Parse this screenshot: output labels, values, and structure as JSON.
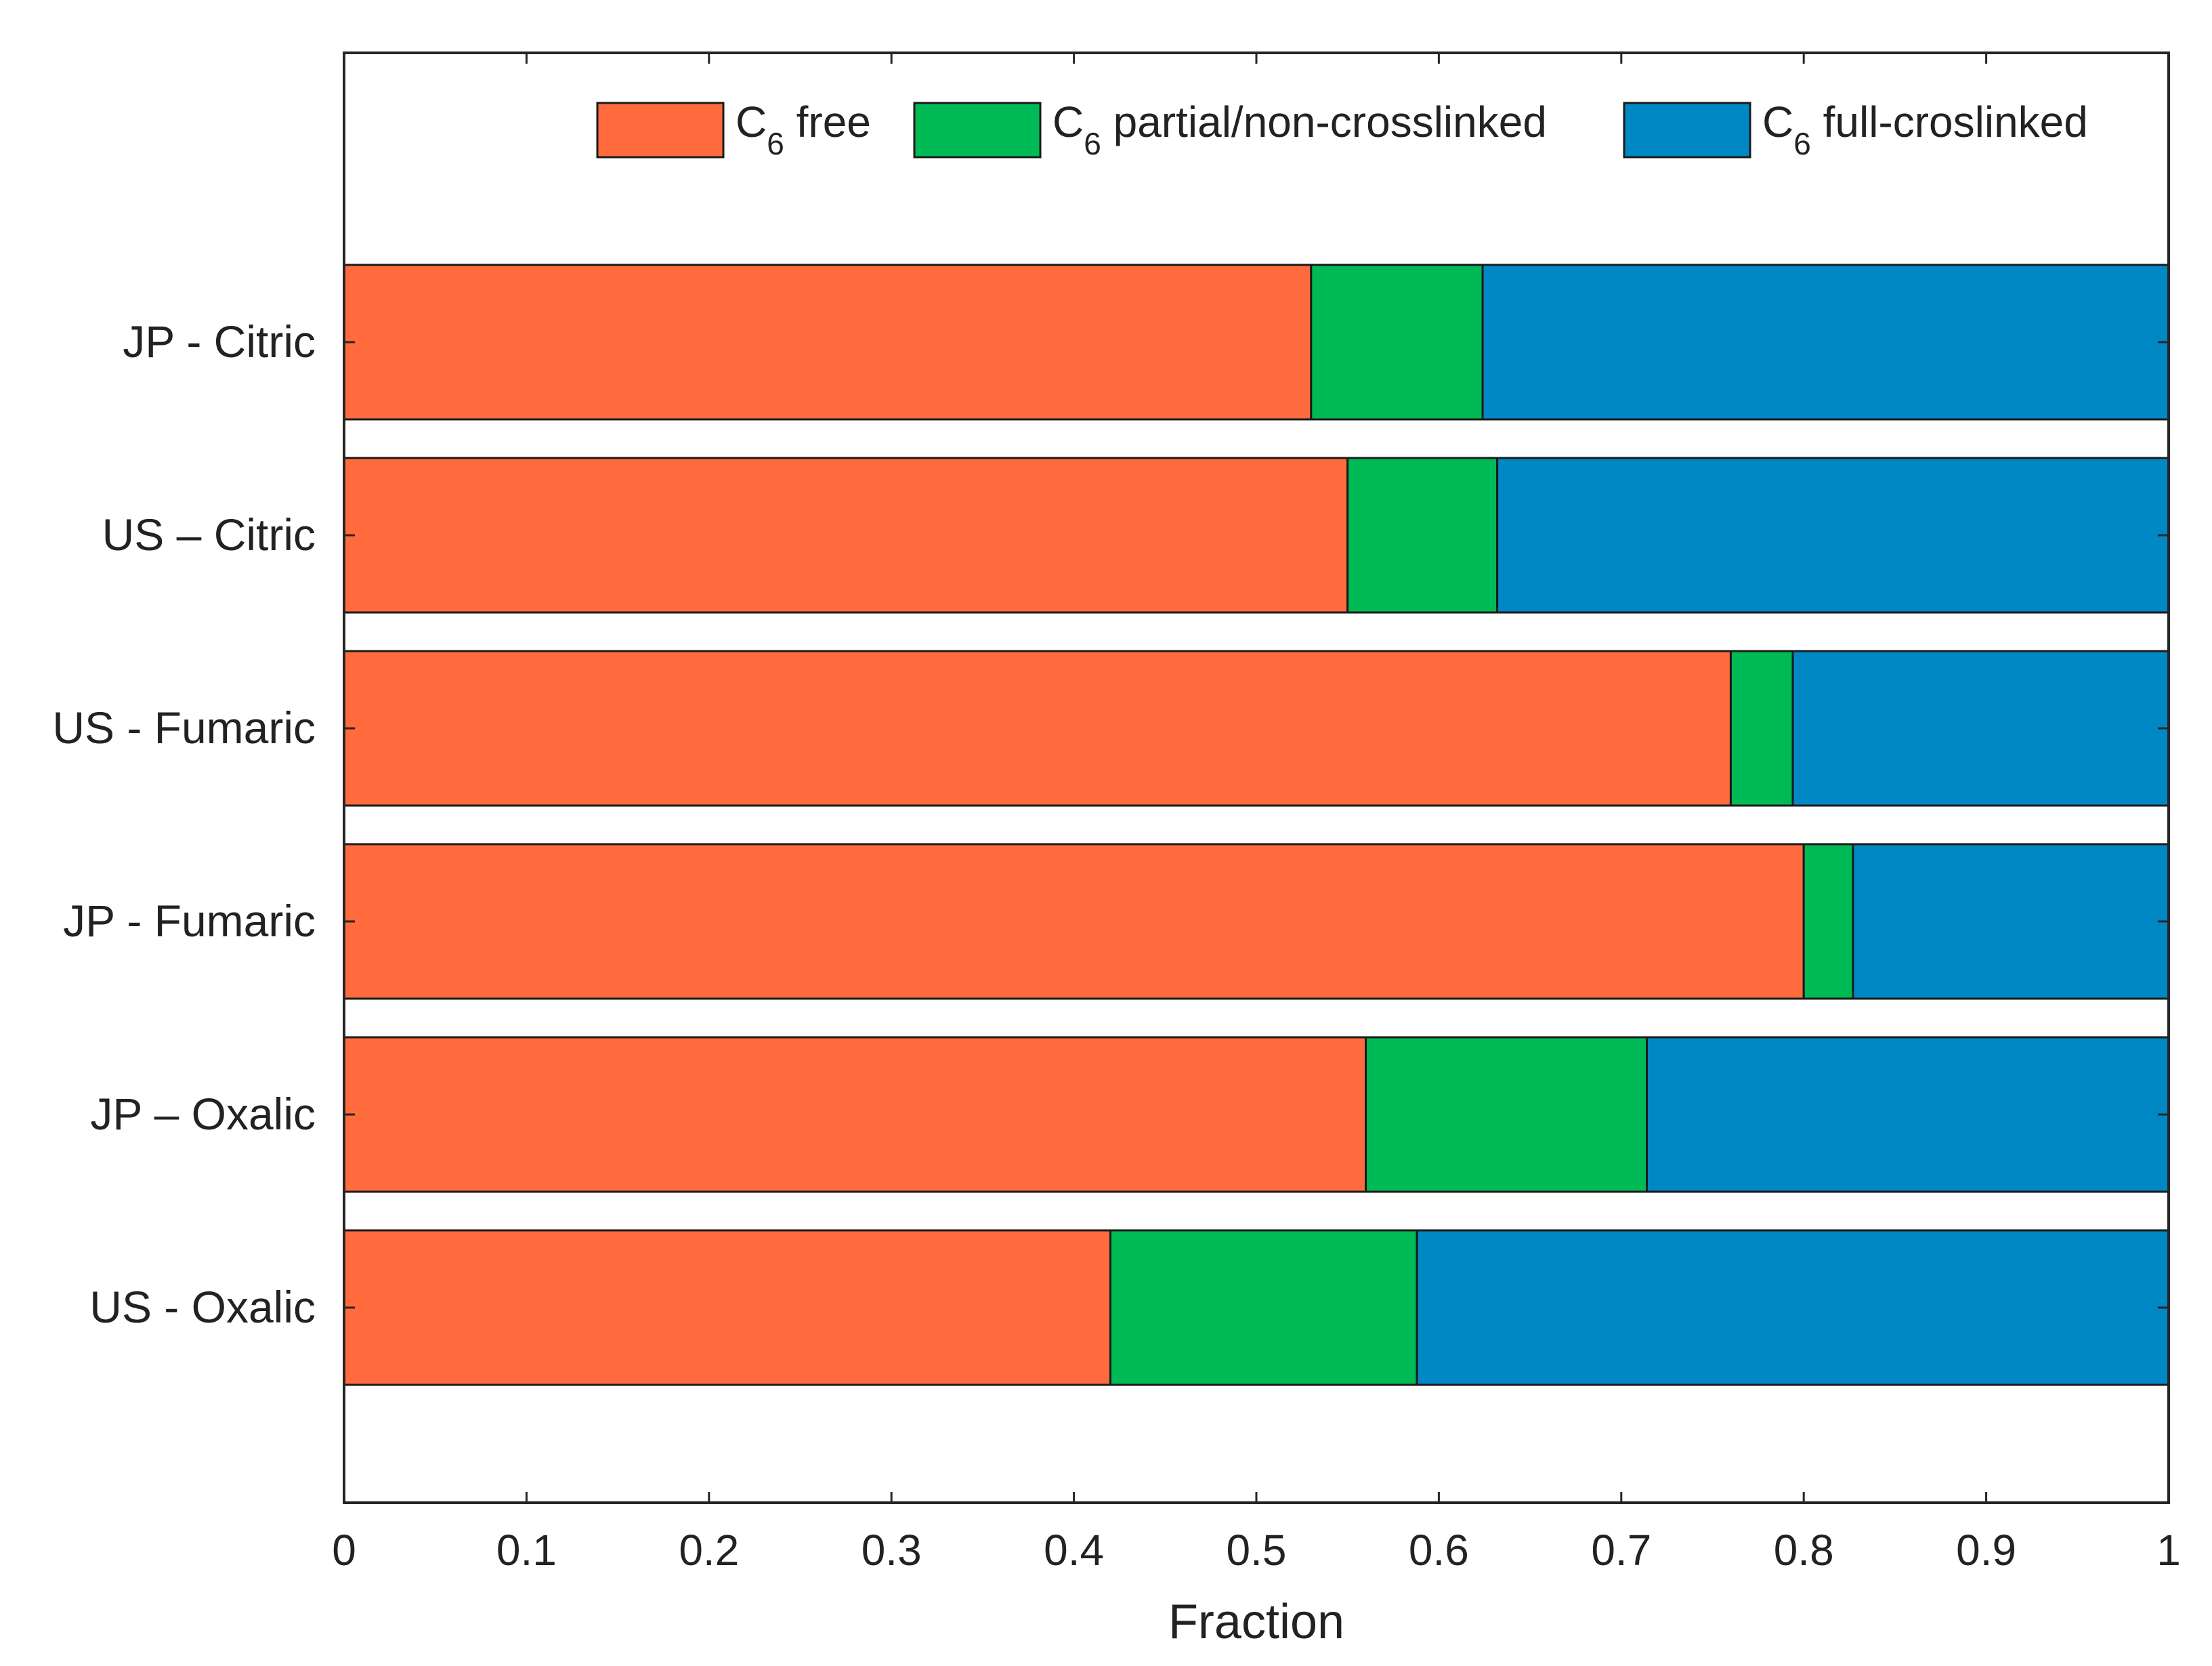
{
  "chart_data": {
    "type": "stacked-horizontal-bar",
    "title": "",
    "xlabel": "Fraction",
    "ylabel": "",
    "xlim": [
      0,
      1
    ],
    "xticks": [
      "0",
      "0.1",
      "0.2",
      "0.3",
      "0.4",
      "0.5",
      "0.6",
      "0.7",
      "0.8",
      "0.9",
      "1"
    ],
    "categories": [
      "JP - Citric",
      "US – Citric",
      "US - Fumaric",
      "JP - Fumaric",
      "JP – Oxalic",
      "US - Oxalic"
    ],
    "series": [
      {
        "name": "C6 free",
        "label_main": "C",
        "label_sub": "6",
        "label_rest": " free",
        "color": "#FF6B3D",
        "values": [
          0.53,
          0.55,
          0.76,
          0.8,
          0.56,
          0.42
        ]
      },
      {
        "name": "C6 partial/non-crosslinked",
        "label_main": "C",
        "label_sub": "6",
        "label_rest": " partial/non-crosslinked",
        "color": "#00BB55",
        "values": [
          0.094,
          0.082,
          0.034,
          0.027,
          0.154,
          0.168
        ]
      },
      {
        "name": "C6 full-croslinked",
        "label_main": "C",
        "label_sub": "6",
        "label_rest": " full-croslinked",
        "color": "#0088C4",
        "values": [
          0.376,
          0.368,
          0.206,
          0.173,
          0.286,
          0.412
        ]
      }
    ],
    "legend_position": "top-right",
    "grid": false
  }
}
